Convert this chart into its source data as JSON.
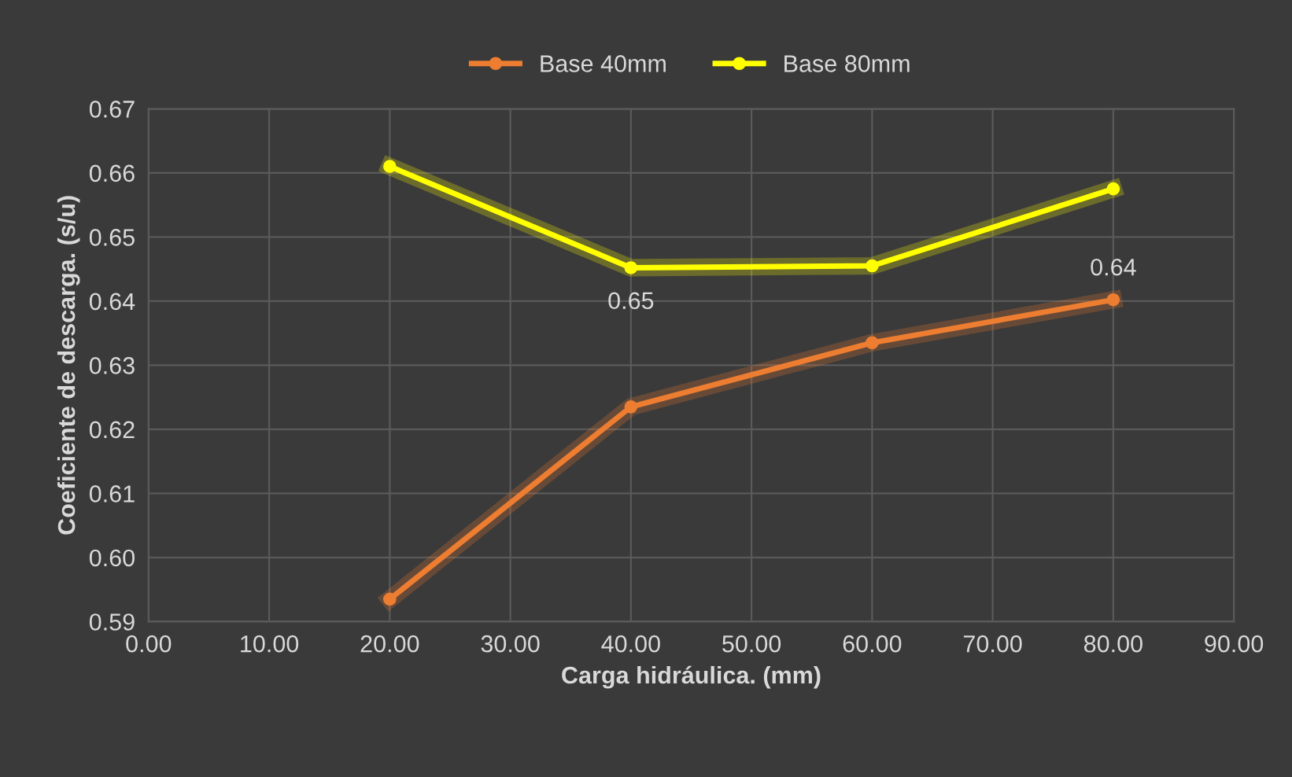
{
  "chart_data": {
    "type": "line",
    "xlabel": "Carga hidráulica. (mm)",
    "ylabel": "Coeficiente de descarga. (s/u)",
    "x": [
      20,
      40,
      60,
      80
    ],
    "series": [
      {
        "name": "Base 40mm",
        "color": "#ed7d31",
        "values": [
          0.5935,
          0.6235,
          0.6335,
          0.6402
        ],
        "value_labels": [
          null,
          null,
          null,
          "0.64"
        ]
      },
      {
        "name": "Base 80mm",
        "color": "#ffff00",
        "values": [
          0.661,
          0.6452,
          0.6455,
          0.6575
        ],
        "value_labels": [
          null,
          "0.65",
          null,
          null
        ]
      }
    ],
    "xlim": [
      0,
      90
    ],
    "xticks": [
      {
        "value": 0,
        "label": "0.00"
      },
      {
        "value": 10,
        "label": "10.00"
      },
      {
        "value": 20,
        "label": "20.00"
      },
      {
        "value": 30,
        "label": "30.00"
      },
      {
        "value": 40,
        "label": "40.00"
      },
      {
        "value": 50,
        "label": "50.00"
      },
      {
        "value": 60,
        "label": "60.00"
      },
      {
        "value": 70,
        "label": "70.00"
      },
      {
        "value": 80,
        "label": "80.00"
      },
      {
        "value": 90,
        "label": "90.00"
      }
    ],
    "ylim": [
      0.59,
      0.67
    ],
    "yticks": [
      {
        "value": 0.59,
        "label": "0.59"
      },
      {
        "value": 0.6,
        "label": "0.60"
      },
      {
        "value": 0.61,
        "label": "0.61"
      },
      {
        "value": 0.62,
        "label": "0.62"
      },
      {
        "value": 0.63,
        "label": "0.63"
      },
      {
        "value": 0.64,
        "label": "0.64"
      },
      {
        "value": 0.65,
        "label": "0.65"
      },
      {
        "value": 0.66,
        "label": "0.66"
      },
      {
        "value": 0.67,
        "label": "0.67"
      }
    ],
    "grid": true,
    "legend": "top",
    "marker": "circle",
    "line_style": "solid"
  }
}
